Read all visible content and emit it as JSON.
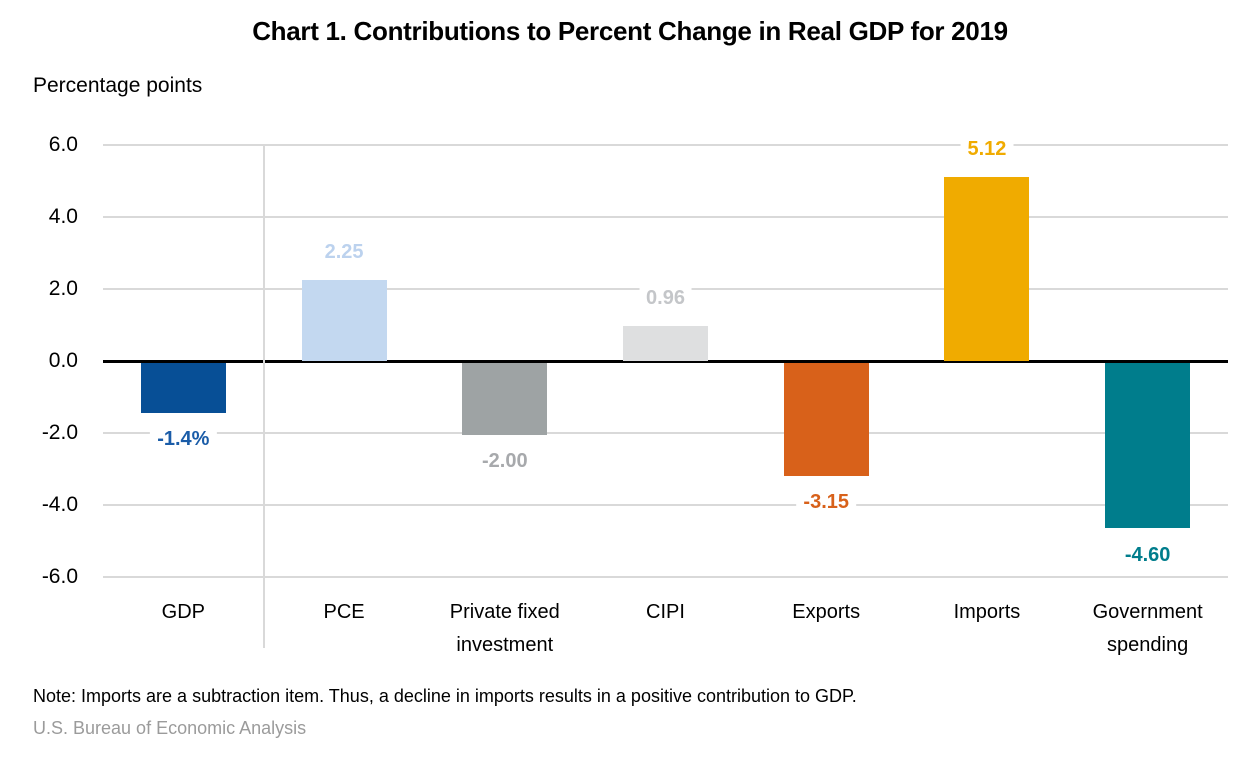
{
  "title": "Chart 1. Contributions to Percent Change in Real GDP for 2019",
  "axis_units_label": "Percentage points",
  "note": "Note: Imports are a subtraction item. Thus, a decline in imports results in a positive contribution to GDP.",
  "source": "U.S. Bureau of Economic Analysis",
  "colors": {
    "background": "#ffffff",
    "gridline": "#d9d9d9",
    "zero_line": "#000000",
    "title_text": "#000000",
    "note_text": "#000000",
    "source_text": "#9b9b9b"
  },
  "chart_data": {
    "type": "bar",
    "title": "Chart 1. Contributions to Percent Change in Real GDP for 2019",
    "xlabel": "",
    "ylabel": "Percentage points",
    "ylim": [
      -6.0,
      6.0
    ],
    "ytick_labels": [
      "6.0",
      "4.0",
      "2.0",
      "0.0",
      "-2.0",
      "-4.0",
      "-6.0"
    ],
    "grid": "horizontal",
    "legend": "none",
    "separator_after_category_index": 0,
    "categories": [
      "GDP",
      "PCE",
      "Private fixed investment",
      "CIPI",
      "Exports",
      "Imports",
      "Government spending"
    ],
    "category_label_lines": [
      [
        "GDP"
      ],
      [
        "PCE"
      ],
      [
        "Private fixed",
        "investment"
      ],
      [
        "CIPI"
      ],
      [
        "Exports"
      ],
      [
        "Imports"
      ],
      [
        "Government",
        "spending"
      ]
    ],
    "values": [
      -1.4,
      2.25,
      -2.0,
      0.96,
      -3.15,
      5.12,
      -4.6
    ],
    "data_labels": [
      "-1.4%",
      "2.25",
      "-2.00",
      "0.96",
      "-3.15",
      "5.12",
      "-4.60"
    ],
    "bar_colors": [
      "#074f96",
      "#c3d8f0",
      "#9ea3a4",
      "#dedfe0",
      "#d8611a",
      "#f0ab00",
      "#007d8c"
    ],
    "data_label_colors": [
      "#1a5ca8",
      "#bcd2ee",
      "#a7a9ac",
      "#c4c6c9",
      "#d8611a",
      "#f0ab00",
      "#007d8c"
    ]
  }
}
